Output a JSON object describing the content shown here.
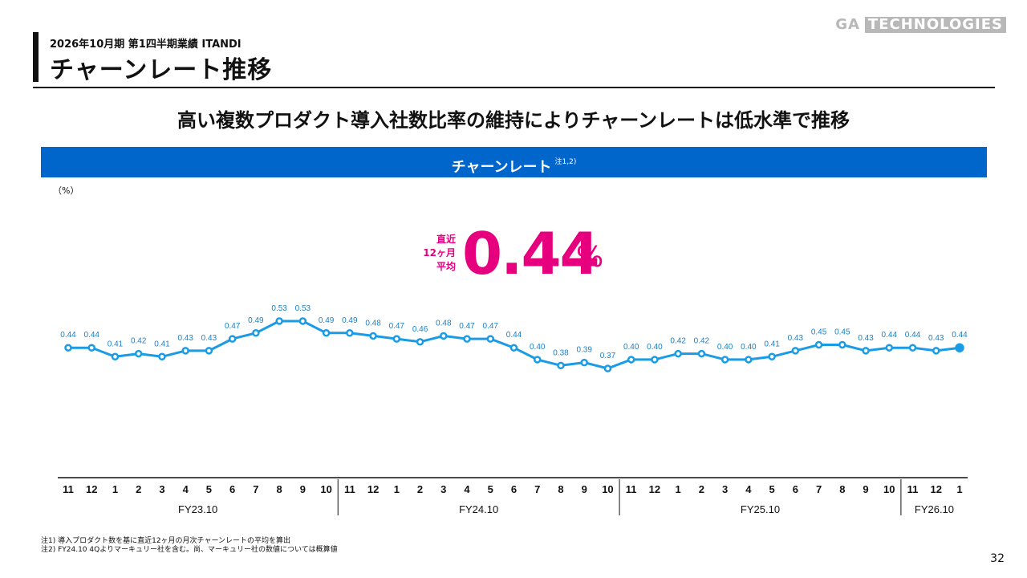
{
  "header": {
    "subtitle": "2026年10月期 第1四半期業績 ITANDI",
    "title": "チャーンレート推移",
    "logo_left": "GA",
    "logo_right": "TECHNOLOGIES"
  },
  "headline": "高い複数プロダクト導入社数比率の維持によりチャーンレートは低水準で推移",
  "banner": {
    "label": "チャーンレート",
    "note": "注1,2)"
  },
  "unit_label": "（%）",
  "highlight": {
    "label_lines": [
      "直近",
      "12ヶ月",
      "平均"
    ],
    "value": "0.44",
    "unit": "%"
  },
  "colors": {
    "accent": "#0066cc",
    "line": "#1a9be6",
    "highlight": "#e6007e"
  },
  "chart_data": {
    "type": "line",
    "title": "チャーンレート",
    "ylabel": "（%）",
    "categories": [
      "11",
      "12",
      "1",
      "2",
      "3",
      "4",
      "5",
      "6",
      "7",
      "8",
      "9",
      "10",
      "11",
      "12",
      "1",
      "2",
      "3",
      "4",
      "5",
      "6",
      "7",
      "8",
      "9",
      "10",
      "11",
      "12",
      "1",
      "2",
      "3",
      "4",
      "5",
      "6",
      "7",
      "8",
      "9",
      "10",
      "11",
      "12",
      "1"
    ],
    "values": [
      0.44,
      0.44,
      0.41,
      0.42,
      0.41,
      0.43,
      0.43,
      0.47,
      0.49,
      0.53,
      0.53,
      0.49,
      0.49,
      0.48,
      0.47,
      0.46,
      0.48,
      0.47,
      0.47,
      0.44,
      0.4,
      0.38,
      0.39,
      0.37,
      0.4,
      0.4,
      0.42,
      0.42,
      0.4,
      0.4,
      0.41,
      0.43,
      0.45,
      0.45,
      0.43,
      0.44,
      0.44,
      0.43,
      0.44
    ],
    "value_labels": [
      "0.44",
      "0.44",
      "0.41",
      "0.42",
      "0.41",
      "0.43",
      "0.43",
      "0.47",
      "0.49",
      "0.53",
      "0.53",
      "0.49",
      "0.49",
      "0.48",
      "0.47",
      "0.46",
      "0.48",
      "0.47",
      "0.47",
      "0.44",
      "0.40",
      "0.38",
      "0.39",
      "0.37",
      "0.40",
      "0.40",
      "0.42",
      "0.42",
      "0.40",
      "0.40",
      "0.41",
      "0.43",
      "0.45",
      "0.45",
      "0.43",
      "0.44",
      "0.44",
      "0.43",
      "0.44"
    ],
    "groups": [
      {
        "label": "FY23.10",
        "count": 12
      },
      {
        "label": "FY24.10",
        "count": 12
      },
      {
        "label": "FY25.10",
        "count": 12
      },
      {
        "label": "FY26.10",
        "count": 3
      }
    ],
    "ylim": [
      0.3,
      0.6
    ]
  },
  "notes": [
    "注1) 導入プロダクト数を基に直近12ヶ月の月次チャーンレートの平均を算出",
    "注2) FY24.10 4Qよりマーキュリー社を含む。尚、マーキュリー社の数値については概算値"
  ],
  "page_number": "32"
}
